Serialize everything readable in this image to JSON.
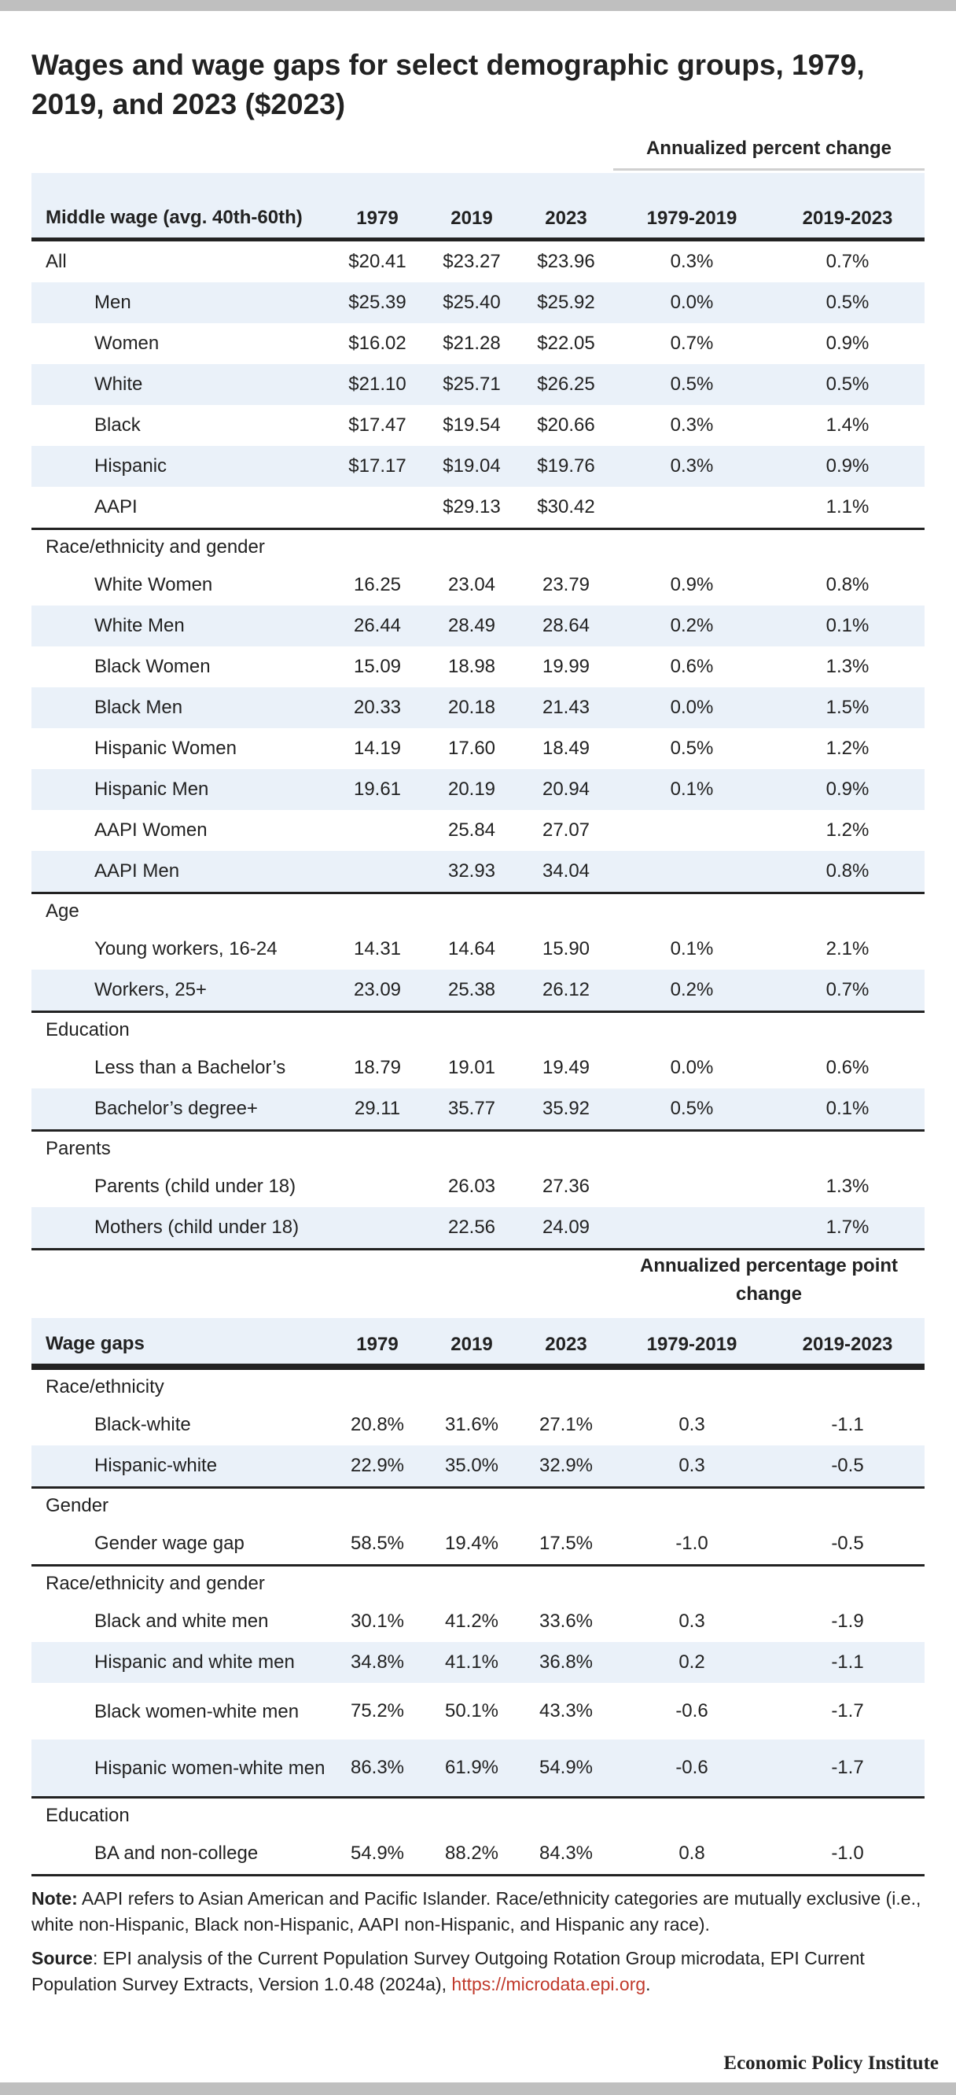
{
  "title": "Wages and wage gaps for select demographic groups, 1979, 2019, and 2023 ($2023)",
  "chart_data": [
    {
      "type": "table",
      "spanner": "Annualized percent change",
      "columns": [
        "Middle wage (avg. 40th-60th)",
        "1979",
        "2019",
        "2023",
        "1979-2019",
        "2019-2023"
      ],
      "sections": [
        {
          "label": "",
          "rows": [
            {
              "label": "All",
              "values": [
                "$20.41",
                "$23.27",
                "$23.96",
                "0.3%",
                "0.7%"
              ]
            },
            {
              "label": "Men",
              "values": [
                "$25.39",
                "$25.40",
                "$25.92",
                "0.0%",
                "0.5%"
              ]
            },
            {
              "label": "Women",
              "values": [
                "$16.02",
                "$21.28",
                "$22.05",
                "0.7%",
                "0.9%"
              ]
            },
            {
              "label": "White",
              "values": [
                "$21.10",
                "$25.71",
                "$26.25",
                "0.5%",
                "0.5%"
              ]
            },
            {
              "label": "Black",
              "values": [
                "$17.47",
                "$19.54",
                "$20.66",
                "0.3%",
                "1.4%"
              ]
            },
            {
              "label": "Hispanic",
              "values": [
                "$17.17",
                "$19.04",
                "$19.76",
                "0.3%",
                "0.9%"
              ]
            },
            {
              "label": "AAPI",
              "values": [
                "",
                "$29.13",
                "$30.42",
                "",
                "1.1%"
              ]
            }
          ]
        },
        {
          "label": "Race/ethnicity and gender",
          "rows": [
            {
              "label": "White Women",
              "values": [
                "16.25",
                "23.04",
                "23.79",
                "0.9%",
                "0.8%"
              ]
            },
            {
              "label": "White Men",
              "values": [
                "26.44",
                "28.49",
                "28.64",
                "0.2%",
                "0.1%"
              ]
            },
            {
              "label": "Black Women",
              "values": [
                "15.09",
                "18.98",
                "19.99",
                "0.6%",
                "1.3%"
              ]
            },
            {
              "label": "Black Men",
              "values": [
                "20.33",
                "20.18",
                "21.43",
                "0.0%",
                "1.5%"
              ]
            },
            {
              "label": "Hispanic Women",
              "values": [
                "14.19",
                "17.60",
                "18.49",
                "0.5%",
                "1.2%"
              ]
            },
            {
              "label": "Hispanic Men",
              "values": [
                "19.61",
                "20.19",
                "20.94",
                "0.1%",
                "0.9%"
              ]
            },
            {
              "label": "AAPI Women",
              "values": [
                "",
                "25.84",
                "27.07",
                "",
                "1.2%"
              ]
            },
            {
              "label": "AAPI Men",
              "values": [
                "",
                "32.93",
                "34.04",
                "",
                "0.8%"
              ]
            }
          ]
        },
        {
          "label": "Age",
          "rows": [
            {
              "label": "Young workers, 16-24",
              "values": [
                "14.31",
                "14.64",
                "15.90",
                "0.1%",
                "2.1%"
              ]
            },
            {
              "label": "Workers, 25+",
              "values": [
                "23.09",
                "25.38",
                "26.12",
                "0.2%",
                "0.7%"
              ]
            }
          ]
        },
        {
          "label": "Education",
          "rows": [
            {
              "label": "Less than a Bachelor’s",
              "values": [
                "18.79",
                "19.01",
                "19.49",
                "0.0%",
                "0.6%"
              ]
            },
            {
              "label": "Bachelor’s degree+",
              "values": [
                "29.11",
                "35.77",
                "35.92",
                "0.5%",
                "0.1%"
              ]
            }
          ]
        },
        {
          "label": "Parents",
          "rows": [
            {
              "label": "Parents (child under 18)",
              "values": [
                "",
                "26.03",
                "27.36",
                "",
                "1.3%"
              ]
            },
            {
              "label": "Mothers (child under 18)",
              "values": [
                "",
                "22.56",
                "24.09",
                "",
                "1.7%"
              ]
            }
          ]
        }
      ]
    },
    {
      "type": "table",
      "spanner": "Annualized percentage point change",
      "columns": [
        "Wage gaps",
        "1979",
        "2019",
        "2023",
        "1979-2019",
        "2019-2023"
      ],
      "sections": [
        {
          "label": "Race/ethnicity",
          "rows": [
            {
              "label": "Black-white",
              "values": [
                "20.8%",
                "31.6%",
                "27.1%",
                "0.3",
                "-1.1"
              ]
            },
            {
              "label": "Hispanic-white",
              "values": [
                "22.9%",
                "35.0%",
                "32.9%",
                "0.3",
                "-0.5"
              ]
            }
          ]
        },
        {
          "label": "Gender",
          "rows": [
            {
              "label": "Gender wage gap",
              "values": [
                "58.5%",
                "19.4%",
                "17.5%",
                "-1.0",
                "-0.5"
              ]
            }
          ]
        },
        {
          "label": "Race/ethnicity and gender",
          "rows": [
            {
              "label": "Black and white men",
              "values": [
                "30.1%",
                "41.2%",
                "33.6%",
                "0.3",
                "-1.9"
              ]
            },
            {
              "label": "Hispanic and white men",
              "values": [
                "34.8%",
                "41.1%",
                "36.8%",
                "0.2",
                "-1.1"
              ]
            },
            {
              "label": "Black women-white men",
              "values": [
                "75.2%",
                "50.1%",
                "43.3%",
                "-0.6",
                "-1.7"
              ]
            },
            {
              "label": "Hispanic women-white men",
              "values": [
                "86.3%",
                "61.9%",
                "54.9%",
                "-0.6",
                "-1.7"
              ]
            }
          ]
        },
        {
          "label": "Education",
          "rows": [
            {
              "label": "BA and non-college",
              "values": [
                "54.9%",
                "88.2%",
                "84.3%",
                "0.8",
                "-1.0"
              ]
            }
          ]
        }
      ]
    }
  ],
  "notes": {
    "note_label": "Note:",
    "note_text": " AAPI refers to Asian American and Pacific Islander. Race/ethnicity categories are mutually exclusive (i.e., white non-Hispanic, Black non-Hispanic, AAPI non-Hispanic, and Hispanic any race).",
    "source_label": "Source",
    "source_text": ": EPI analysis of the Current Population Survey Outgoing Rotation Group microdata, EPI Current Population Survey Extracts, Version 1.0.48 (2024a), ",
    "source_link": "https://microdata.epi.org",
    "source_end": "."
  },
  "logo": "Economic Policy Institute",
  "colors": {
    "header_band": "#eaf1f9",
    "rule": "#222222",
    "link": "#c0392b",
    "page_bars": "#bfbfbf"
  }
}
